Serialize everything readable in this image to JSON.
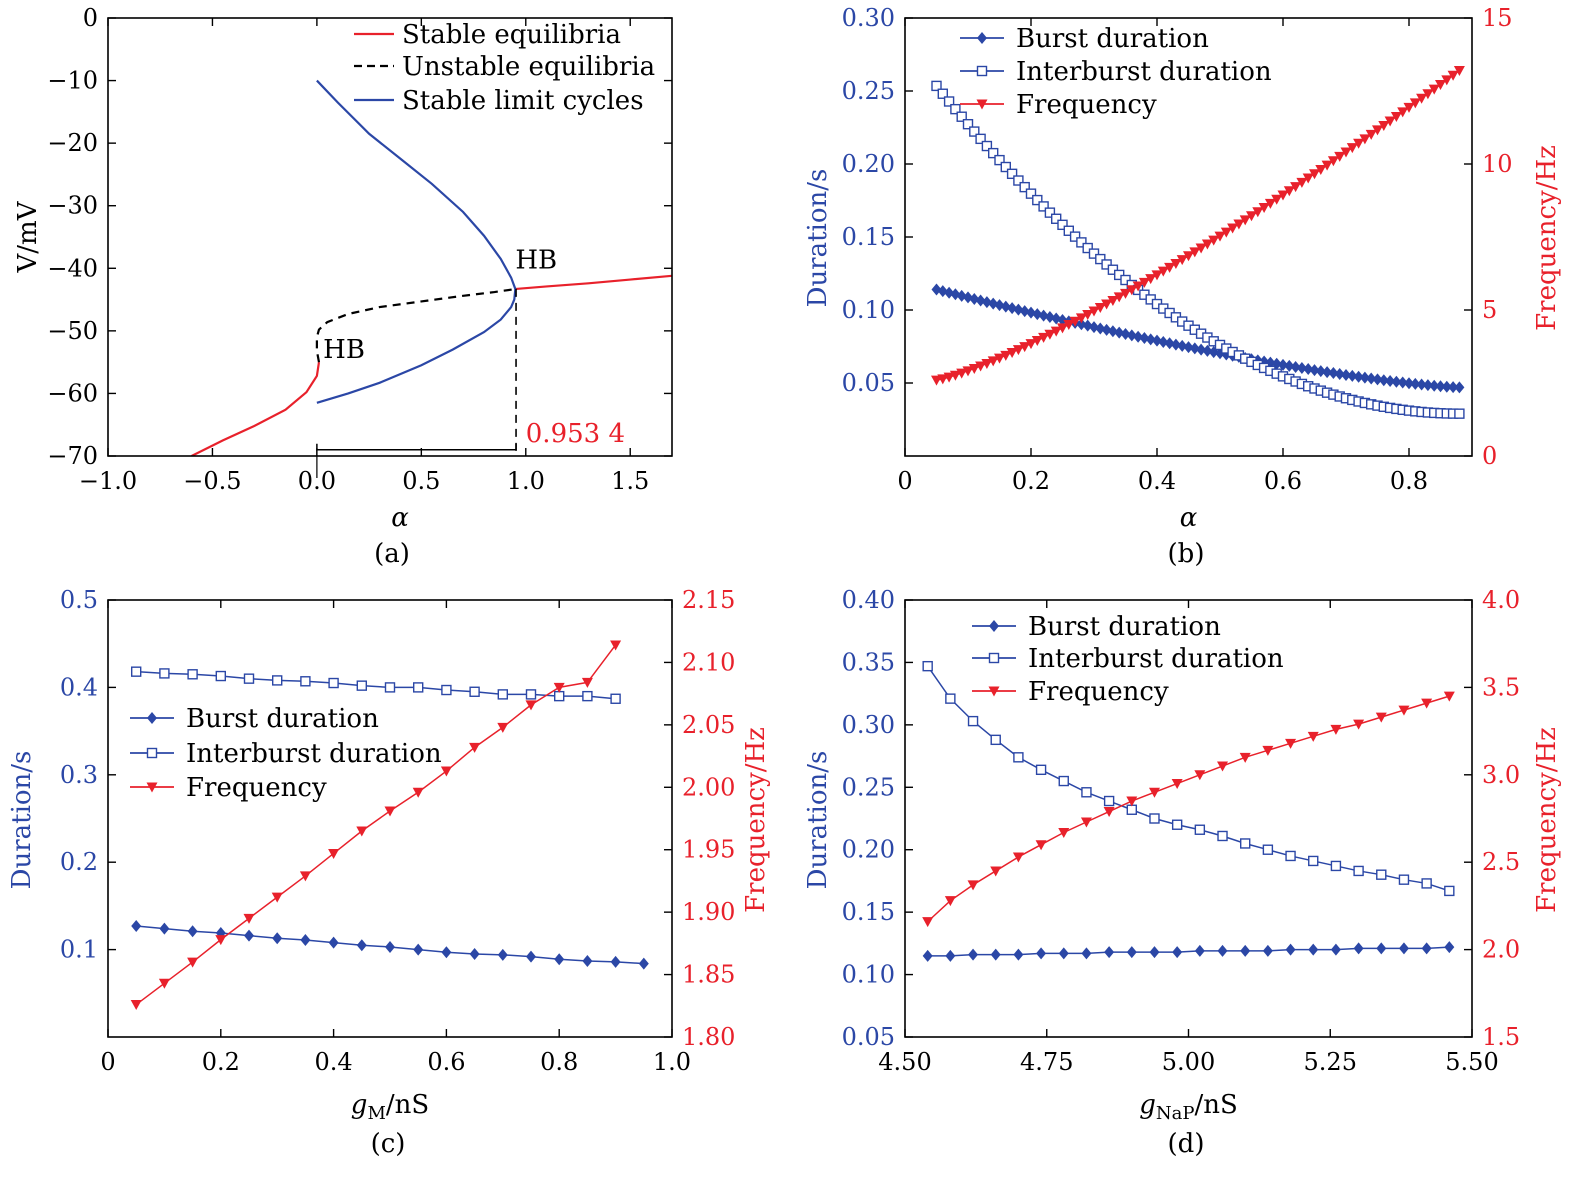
{
  "colors": {
    "blue": "#2B47A6",
    "red": "#E8212B",
    "black": "#000000"
  },
  "chart_data": [
    {
      "id": "a",
      "type": "line",
      "caption": "(a)",
      "xlabel": "α",
      "ylabel": "V/mV",
      "xlim": [
        -1.0,
        1.7
      ],
      "ylim": [
        -70,
        0
      ],
      "xticks": [
        -1.0,
        -0.5,
        0.0,
        0.5,
        1.0,
        1.5
      ],
      "xtick_labels": [
        "−1.0",
        "−0.5",
        "0.0",
        "0.5",
        "1.0",
        "1.5"
      ],
      "yticks": [
        0,
        -10,
        -20,
        -30,
        -40,
        -50,
        -60,
        -70
      ],
      "ytick_labels": [
        "0",
        "−10",
        "−20",
        "−30",
        "−40",
        "−50",
        "−60",
        "−70"
      ],
      "legend": {
        "position": "top-right",
        "entries": [
          {
            "label": "Stable equilibria",
            "style": "solid",
            "color": "red"
          },
          {
            "label": "Unstable equilibria",
            "style": "dashed",
            "color": "black"
          },
          {
            "label": "Stable limit cycles",
            "style": "solid",
            "color": "blue"
          }
        ]
      },
      "series": [
        {
          "name": "Stable equilibria",
          "style": "solid",
          "color": "red",
          "x": [
            -0.6,
            -0.45,
            -0.3,
            -0.15,
            -0.05,
            0.0,
            0.01
          ],
          "y": [
            -70,
            -67.5,
            -65.2,
            -62.6,
            -59.8,
            -57.2,
            -55.0
          ]
        },
        {
          "name": "Stable equilibria",
          "style": "solid",
          "color": "red",
          "x": [
            0.9534,
            1.1,
            1.3,
            1.5,
            1.7
          ],
          "y": [
            -43.3,
            -42.9,
            -42.4,
            -41.8,
            -41.2
          ]
        },
        {
          "name": "Unstable equilibria",
          "style": "dashed",
          "color": "black",
          "x": [
            0.01,
            0.0,
            0.0,
            0.01,
            0.05,
            0.15,
            0.3,
            0.5,
            0.7,
            0.85,
            0.9534
          ],
          "y": [
            -55.0,
            -53.2,
            -51.0,
            -49.8,
            -48.6,
            -47.3,
            -46.2,
            -45.3,
            -44.4,
            -43.8,
            -43.3
          ]
        },
        {
          "name": "Stable limit cycles",
          "style": "solid",
          "color": "blue",
          "x": [
            0.0,
            0.1,
            0.25,
            0.4,
            0.55,
            0.7,
            0.8,
            0.88,
            0.93,
            0.95,
            0.945,
            0.93,
            0.88,
            0.8,
            0.65,
            0.5,
            0.3,
            0.15,
            0.0
          ],
          "y": [
            -10,
            -13.5,
            -18.5,
            -22.5,
            -26.5,
            -31,
            -34.8,
            -38.5,
            -41.5,
            -43.3,
            -45.0,
            -46.2,
            -48.2,
            -50.2,
            -53.0,
            -55.5,
            -58.3,
            -60.0,
            -61.5
          ]
        }
      ],
      "annotations": [
        {
          "text": "HB",
          "x": 0.95,
          "y": -40.0,
          "color": "black"
        },
        {
          "text": "HB",
          "x": 0.03,
          "y": -54.3,
          "color": "black"
        },
        {
          "text": "0.953 4",
          "x": 1.0,
          "y": -67.8,
          "color": "red"
        }
      ],
      "guides": {
        "bracket_x": [
          0.0,
          0.9534
        ],
        "bracket_y": -69.0,
        "vline_x": 0.9534,
        "vline_y": [
          -43.3,
          -70
        ]
      }
    },
    {
      "id": "b",
      "type": "line",
      "caption": "(b)",
      "xlabel": "α",
      "ylabel": "Duration/s",
      "ylabel_right": "Frequency/Hz",
      "xlim": [
        0,
        0.9
      ],
      "ylim": [
        0.0,
        0.3
      ],
      "ylim_right": [
        0,
        15
      ],
      "xticks": [
        0,
        0.2,
        0.4,
        0.6,
        0.8
      ],
      "xtick_labels": [
        "0",
        "0.2",
        "0.4",
        "0.6",
        "0.8"
      ],
      "yticks": [
        0.05,
        0.1,
        0.15,
        0.2,
        0.25,
        0.3
      ],
      "ytick_labels": [
        "0.05",
        "0.10",
        "0.15",
        "0.20",
        "0.25",
        "0.30"
      ],
      "yticks_right": [
        0,
        5,
        10,
        15
      ],
      "ytick_labels_right": [
        "0",
        "5",
        "10",
        "15"
      ],
      "x": [
        0.05,
        0.06,
        0.07,
        0.08,
        0.09,
        0.1,
        0.11,
        0.12,
        0.13,
        0.14,
        0.15,
        0.16,
        0.17,
        0.18,
        0.19,
        0.2,
        0.21,
        0.22,
        0.23,
        0.24,
        0.25,
        0.26,
        0.27,
        0.28,
        0.29,
        0.3,
        0.31,
        0.32,
        0.33,
        0.34,
        0.35,
        0.36,
        0.37,
        0.38,
        0.39,
        0.4,
        0.41,
        0.42,
        0.43,
        0.44,
        0.45,
        0.46,
        0.47,
        0.48,
        0.49,
        0.5,
        0.51,
        0.52,
        0.53,
        0.54,
        0.55,
        0.56,
        0.57,
        0.58,
        0.59,
        0.6,
        0.61,
        0.62,
        0.63,
        0.64,
        0.65,
        0.66,
        0.67,
        0.68,
        0.69,
        0.7,
        0.71,
        0.72,
        0.73,
        0.74,
        0.75,
        0.76,
        0.77,
        0.78,
        0.79,
        0.8,
        0.81,
        0.82,
        0.83,
        0.84,
        0.85,
        0.86,
        0.87,
        0.88
      ],
      "legend": {
        "position": "top-left",
        "entries": [
          "Burst duration",
          "Interburst duration",
          "Frequency"
        ]
      },
      "series": [
        {
          "name": "Burst duration",
          "marker": "diamond",
          "color": "blue",
          "axis": "left",
          "params": {
            "a": 0.114,
            "b": 0.047,
            "e": 1.35
          }
        },
        {
          "name": "Interburst duration",
          "marker": "square",
          "color": "blue",
          "axis": "left",
          "params": {
            "a": 0.2535,
            "b": 0.029,
            "e": 2.0
          }
        },
        {
          "name": "Frequency",
          "marker": "triangle-down",
          "color": "red",
          "axis": "right",
          "params": {
            "a": 2.6,
            "b": 13.2,
            "e": 1.25
          }
        }
      ]
    },
    {
      "id": "c",
      "type": "line",
      "caption": "(c)",
      "xlabel": "gM/nS",
      "xlabel_main": "g",
      "xlabel_sub": "M",
      "xlabel_rest": "/nS",
      "ylabel": "Duration/s",
      "ylabel_right": "Frequency/Hz",
      "xlim": [
        0,
        1.0
      ],
      "ylim": [
        0.0,
        0.5
      ],
      "ylim_right": [
        1.8,
        2.15
      ],
      "xticks": [
        0,
        0.2,
        0.4,
        0.6,
        0.8,
        1.0
      ],
      "xtick_labels": [
        "0",
        "0.2",
        "0.4",
        "0.6",
        "0.8",
        "1.0"
      ],
      "yticks": [
        0.1,
        0.2,
        0.3,
        0.4,
        0.5
      ],
      "ytick_labels": [
        "0.1",
        "0.2",
        "0.3",
        "0.4",
        "0.5"
      ],
      "yticks_right": [
        1.8,
        1.85,
        1.9,
        1.95,
        2.0,
        2.05,
        2.1,
        2.15
      ],
      "ytick_labels_right": [
        "1.80",
        "1.85",
        "1.90",
        "1.95",
        "2.00",
        "2.05",
        "2.10",
        "2.15"
      ],
      "legend": {
        "position": "left",
        "entries": [
          "Burst duration",
          "Interburst duration",
          "Frequency"
        ]
      },
      "series": [
        {
          "name": "Burst duration",
          "marker": "diamond",
          "color": "blue",
          "axis": "left",
          "x": [
            0.05,
            0.1,
            0.15,
            0.2,
            0.25,
            0.3,
            0.35,
            0.4,
            0.45,
            0.5,
            0.55,
            0.6,
            0.65,
            0.7,
            0.75,
            0.8,
            0.85,
            0.9,
            0.95
          ],
          "y": [
            0.127,
            0.124,
            0.121,
            0.119,
            0.116,
            0.113,
            0.111,
            0.108,
            0.105,
            0.103,
            0.1,
            0.097,
            0.095,
            0.094,
            0.092,
            0.089,
            0.087,
            0.086,
            0.084
          ]
        },
        {
          "name": "Interburst duration",
          "marker": "square",
          "color": "blue",
          "axis": "left",
          "x": [
            0.05,
            0.1,
            0.15,
            0.2,
            0.25,
            0.3,
            0.35,
            0.4,
            0.45,
            0.5,
            0.55,
            0.6,
            0.65,
            0.7,
            0.75,
            0.8,
            0.85,
            0.9
          ],
          "y": [
            0.418,
            0.416,
            0.415,
            0.413,
            0.41,
            0.408,
            0.407,
            0.405,
            0.402,
            0.4,
            0.4,
            0.397,
            0.395,
            0.392,
            0.392,
            0.39,
            0.39,
            0.387
          ]
        },
        {
          "name": "Frequency",
          "marker": "triangle-down",
          "color": "red",
          "axis": "right",
          "x": [
            0.05,
            0.1,
            0.15,
            0.2,
            0.25,
            0.3,
            0.35,
            0.4,
            0.45,
            0.5,
            0.55,
            0.6,
            0.65,
            0.7,
            0.75,
            0.8,
            0.85,
            0.9
          ],
          "y": [
            1.826,
            1.843,
            1.86,
            1.878,
            1.895,
            1.912,
            1.929,
            1.947,
            1.965,
            1.981,
            1.996,
            2.013,
            2.032,
            2.048,
            2.066,
            2.08,
            2.084,
            2.114
          ]
        }
      ]
    },
    {
      "id": "d",
      "type": "line",
      "caption": "(d)",
      "xlabel": "gNaP/nS",
      "xlabel_main": "g",
      "xlabel_sub": "NaP",
      "xlabel_rest": "/nS",
      "ylabel": "Duration/s",
      "ylabel_right": "Frequency/Hz",
      "xlim": [
        4.5,
        5.5
      ],
      "ylim": [
        0.05,
        0.4
      ],
      "ylim_right": [
        1.5,
        4.0
      ],
      "xticks": [
        4.5,
        4.75,
        5.0,
        5.25,
        5.5
      ],
      "xtick_labels": [
        "4.50",
        "4.75",
        "5.00",
        "5.25",
        "5.50"
      ],
      "yticks": [
        0.05,
        0.1,
        0.15,
        0.2,
        0.25,
        0.3,
        0.35,
        0.4
      ],
      "ytick_labels": [
        "0.05",
        "0.10",
        "0.15",
        "0.20",
        "0.25",
        "0.30",
        "0.35",
        "0.40"
      ],
      "yticks_right": [
        1.5,
        2.0,
        2.5,
        3.0,
        3.5,
        4.0
      ],
      "ytick_labels_right": [
        "1.5",
        "2.0",
        "2.5",
        "3.0",
        "3.5",
        "4.0"
      ],
      "legend": {
        "position": "top-left",
        "entries": [
          "Burst duration",
          "Interburst duration",
          "Frequency"
        ]
      },
      "series": [
        {
          "name": "Burst duration",
          "marker": "diamond",
          "color": "blue",
          "axis": "left",
          "x": [
            4.54,
            4.58,
            4.62,
            4.66,
            4.7,
            4.74,
            4.78,
            4.82,
            4.86,
            4.9,
            4.94,
            4.98,
            5.02,
            5.06,
            5.1,
            5.14,
            5.18,
            5.22,
            5.26,
            5.3,
            5.34,
            5.38,
            5.42,
            5.46
          ],
          "y": [
            0.115,
            0.115,
            0.116,
            0.116,
            0.116,
            0.117,
            0.117,
            0.117,
            0.118,
            0.118,
            0.118,
            0.118,
            0.119,
            0.119,
            0.119,
            0.119,
            0.12,
            0.12,
            0.12,
            0.121,
            0.121,
            0.121,
            0.121,
            0.122
          ]
        },
        {
          "name": "Interburst duration",
          "marker": "square",
          "color": "blue",
          "axis": "left",
          "x": [
            4.54,
            4.58,
            4.62,
            4.66,
            4.7,
            4.74,
            4.78,
            4.82,
            4.86,
            4.9,
            4.94,
            4.98,
            5.02,
            5.06,
            5.1,
            5.14,
            5.18,
            5.22,
            5.26,
            5.3,
            5.34,
            5.38,
            5.42,
            5.46
          ],
          "y": [
            0.347,
            0.321,
            0.303,
            0.288,
            0.274,
            0.264,
            0.255,
            0.246,
            0.239,
            0.232,
            0.225,
            0.22,
            0.216,
            0.211,
            0.205,
            0.2,
            0.195,
            0.191,
            0.187,
            0.183,
            0.18,
            0.176,
            0.173,
            0.167
          ]
        },
        {
          "name": "Frequency",
          "marker": "triangle-down",
          "color": "red",
          "axis": "right",
          "x": [
            4.54,
            4.58,
            4.62,
            4.66,
            4.7,
            4.74,
            4.78,
            4.82,
            4.86,
            4.9,
            4.94,
            4.98,
            5.02,
            5.06,
            5.1,
            5.14,
            5.18,
            5.22,
            5.26,
            5.3,
            5.34,
            5.38,
            5.42,
            5.46
          ],
          "y": [
            2.16,
            2.28,
            2.37,
            2.45,
            2.53,
            2.6,
            2.67,
            2.73,
            2.79,
            2.85,
            2.9,
            2.95,
            3.0,
            3.05,
            3.1,
            3.14,
            3.18,
            3.22,
            3.26,
            3.29,
            3.33,
            3.37,
            3.41,
            3.45
          ]
        }
      ]
    }
  ]
}
